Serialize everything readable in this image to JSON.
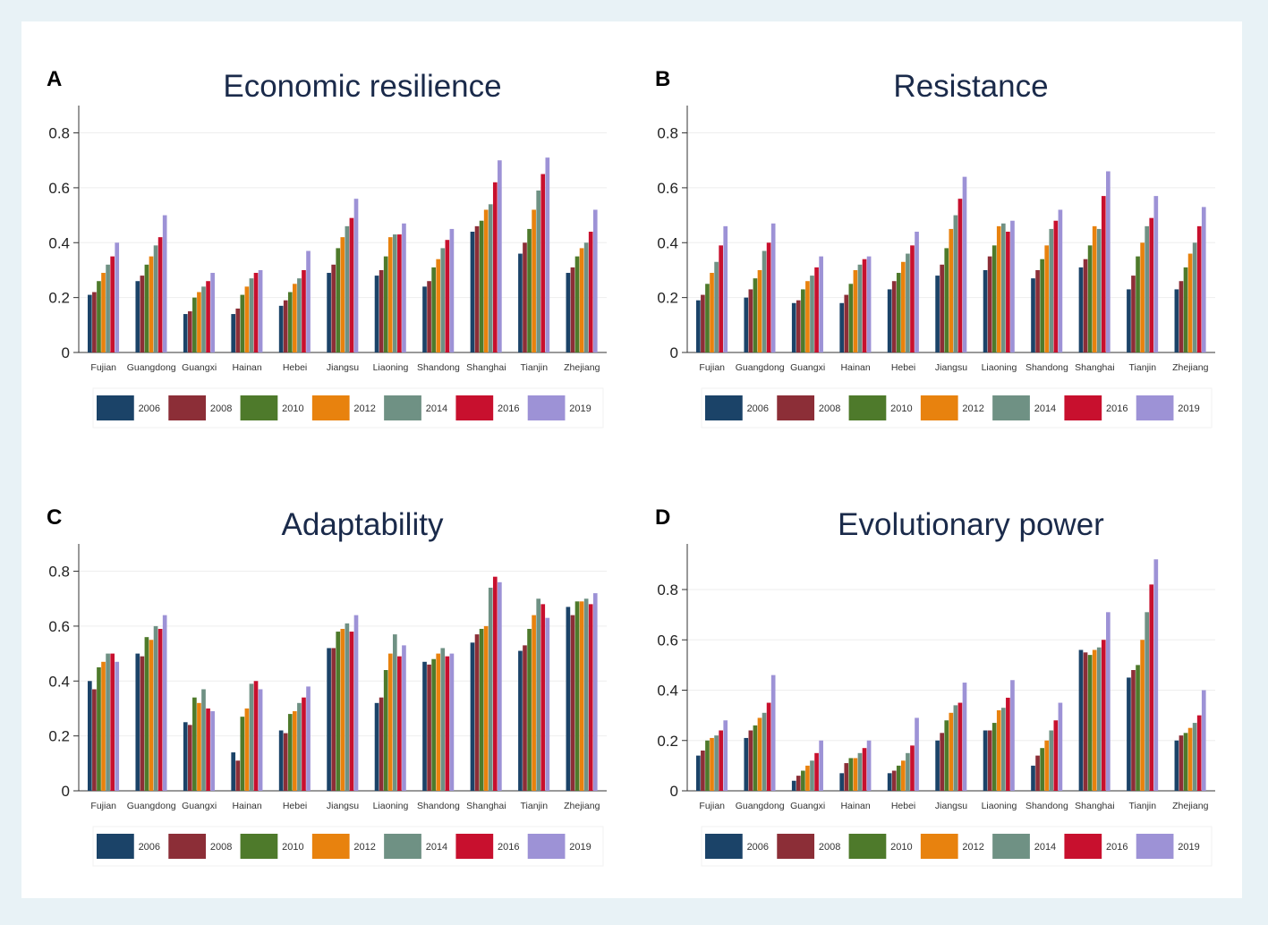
{
  "chart_data": [
    {
      "type": "bar",
      "panel_label": "A",
      "title": "Economic resilience",
      "xlabel": "",
      "ylabel": "",
      "ylim": [
        0,
        0.88
      ],
      "yticks": [
        0,
        0.2,
        0.4,
        0.6,
        0.8
      ],
      "ytick_labels": [
        "0",
        "0.2",
        "0.4",
        "0.6",
        "0.8"
      ],
      "grid": true,
      "legend_position": "bottom",
      "categories": [
        "Fujian",
        "Guangdong",
        "Guangxi",
        "Hainan",
        "Hebei",
        "Jiangsu",
        "Liaoning",
        "Shandong",
        "Shanghai",
        "Tianjin",
        "Zhejiang"
      ],
      "series": [
        {
          "name": "2006",
          "values": [
            0.21,
            0.26,
            0.14,
            0.14,
            0.17,
            0.29,
            0.28,
            0.24,
            0.44,
            0.36,
            0.29
          ]
        },
        {
          "name": "2008",
          "values": [
            0.22,
            0.28,
            0.15,
            0.16,
            0.19,
            0.32,
            0.3,
            0.26,
            0.46,
            0.4,
            0.31
          ]
        },
        {
          "name": "2010",
          "values": [
            0.26,
            0.32,
            0.2,
            0.21,
            0.22,
            0.38,
            0.35,
            0.31,
            0.48,
            0.45,
            0.35
          ]
        },
        {
          "name": "2012",
          "values": [
            0.29,
            0.35,
            0.22,
            0.24,
            0.25,
            0.42,
            0.42,
            0.34,
            0.52,
            0.52,
            0.38
          ]
        },
        {
          "name": "2014",
          "values": [
            0.32,
            0.39,
            0.24,
            0.27,
            0.27,
            0.46,
            0.43,
            0.38,
            0.54,
            0.59,
            0.4
          ]
        },
        {
          "name": "2016",
          "values": [
            0.35,
            0.42,
            0.26,
            0.29,
            0.3,
            0.49,
            0.43,
            0.41,
            0.62,
            0.65,
            0.44
          ]
        },
        {
          "name": "2019",
          "values": [
            0.4,
            0.5,
            0.29,
            0.3,
            0.37,
            0.56,
            0.47,
            0.45,
            0.7,
            0.71,
            0.52
          ]
        }
      ]
    },
    {
      "type": "bar",
      "panel_label": "B",
      "title": "Resistance",
      "xlabel": "",
      "ylabel": "",
      "ylim": [
        0,
        0.88
      ],
      "yticks": [
        0,
        0.2,
        0.4,
        0.6,
        0.8
      ],
      "ytick_labels": [
        "0",
        "0.2",
        "0.4",
        "0.6",
        "0.8"
      ],
      "grid": true,
      "legend_position": "bottom",
      "categories": [
        "Fujian",
        "Guangdong",
        "Guangxi",
        "Hainan",
        "Hebei",
        "Jiangsu",
        "Liaoning",
        "Shandong",
        "Shanghai",
        "Tianjin",
        "Zhejiang"
      ],
      "series": [
        {
          "name": "2006",
          "values": [
            0.19,
            0.2,
            0.18,
            0.18,
            0.23,
            0.28,
            0.3,
            0.27,
            0.31,
            0.23,
            0.23
          ]
        },
        {
          "name": "2008",
          "values": [
            0.21,
            0.23,
            0.19,
            0.21,
            0.26,
            0.32,
            0.35,
            0.3,
            0.34,
            0.28,
            0.26
          ]
        },
        {
          "name": "2010",
          "values": [
            0.25,
            0.27,
            0.23,
            0.25,
            0.29,
            0.38,
            0.39,
            0.34,
            0.39,
            0.35,
            0.31
          ]
        },
        {
          "name": "2012",
          "values": [
            0.29,
            0.3,
            0.26,
            0.3,
            0.33,
            0.45,
            0.46,
            0.39,
            0.46,
            0.4,
            0.36
          ]
        },
        {
          "name": "2014",
          "values": [
            0.33,
            0.37,
            0.28,
            0.32,
            0.36,
            0.5,
            0.47,
            0.45,
            0.45,
            0.46,
            0.4
          ]
        },
        {
          "name": "2016",
          "values": [
            0.39,
            0.4,
            0.31,
            0.34,
            0.39,
            0.56,
            0.44,
            0.48,
            0.57,
            0.49,
            0.46
          ]
        },
        {
          "name": "2019",
          "values": [
            0.46,
            0.47,
            0.35,
            0.35,
            0.44,
            0.64,
            0.48,
            0.52,
            0.66,
            0.57,
            0.53
          ]
        }
      ]
    },
    {
      "type": "bar",
      "panel_label": "C",
      "title": "Adaptability",
      "xlabel": "",
      "ylabel": "",
      "ylim": [
        0,
        0.88
      ],
      "yticks": [
        0,
        0.2,
        0.4,
        0.6,
        0.8
      ],
      "ytick_labels": [
        "0",
        "0.2",
        "0.4",
        "0.6",
        "0.8"
      ],
      "grid": true,
      "legend_position": "bottom",
      "categories": [
        "Fujian",
        "Guangdong",
        "Guangxi",
        "Hainan",
        "Hebei",
        "Jiangsu",
        "Liaoning",
        "Shandong",
        "Shanghai",
        "Tianjin",
        "Zhejiang"
      ],
      "series": [
        {
          "name": "2006",
          "values": [
            0.4,
            0.5,
            0.25,
            0.14,
            0.22,
            0.52,
            0.32,
            0.47,
            0.54,
            0.51,
            0.67
          ]
        },
        {
          "name": "2008",
          "values": [
            0.37,
            0.49,
            0.24,
            0.11,
            0.21,
            0.52,
            0.34,
            0.46,
            0.57,
            0.53,
            0.64
          ]
        },
        {
          "name": "2010",
          "values": [
            0.45,
            0.56,
            0.34,
            0.27,
            0.28,
            0.58,
            0.44,
            0.48,
            0.59,
            0.59,
            0.69
          ]
        },
        {
          "name": "2012",
          "values": [
            0.47,
            0.55,
            0.32,
            0.3,
            0.29,
            0.59,
            0.5,
            0.5,
            0.6,
            0.64,
            0.69
          ]
        },
        {
          "name": "2014",
          "values": [
            0.5,
            0.6,
            0.37,
            0.39,
            0.32,
            0.61,
            0.57,
            0.52,
            0.74,
            0.7,
            0.7
          ]
        },
        {
          "name": "2016",
          "values": [
            0.5,
            0.59,
            0.3,
            0.4,
            0.34,
            0.58,
            0.49,
            0.49,
            0.78,
            0.68,
            0.68
          ]
        },
        {
          "name": "2019",
          "values": [
            0.47,
            0.64,
            0.29,
            0.37,
            0.38,
            0.64,
            0.53,
            0.5,
            0.76,
            0.63,
            0.72
          ]
        }
      ]
    },
    {
      "type": "bar",
      "panel_label": "D",
      "title": "Evolutionary power",
      "xlabel": "",
      "ylabel": "",
      "ylim": [
        0,
        0.96
      ],
      "yticks": [
        0,
        0.2,
        0.4,
        0.6,
        0.8
      ],
      "ytick_labels": [
        "0",
        "0.2",
        "0.4",
        "0.6",
        "0.8"
      ],
      "grid": true,
      "legend_position": "bottom",
      "categories": [
        "Fujian",
        "Guangdong",
        "Guangxi",
        "Hainan",
        "Hebei",
        "Jiangsu",
        "Liaoning",
        "Shandong",
        "Shanghai",
        "Tianjin",
        "Zhejiang"
      ],
      "series": [
        {
          "name": "2006",
          "values": [
            0.14,
            0.21,
            0.04,
            0.07,
            0.07,
            0.2,
            0.24,
            0.1,
            0.56,
            0.45,
            0.2
          ]
        },
        {
          "name": "2008",
          "values": [
            0.16,
            0.24,
            0.06,
            0.11,
            0.08,
            0.23,
            0.24,
            0.14,
            0.55,
            0.48,
            0.22
          ]
        },
        {
          "name": "2010",
          "values": [
            0.2,
            0.26,
            0.08,
            0.13,
            0.1,
            0.28,
            0.27,
            0.17,
            0.54,
            0.5,
            0.23
          ]
        },
        {
          "name": "2012",
          "values": [
            0.21,
            0.29,
            0.1,
            0.13,
            0.12,
            0.31,
            0.32,
            0.2,
            0.56,
            0.6,
            0.25
          ]
        },
        {
          "name": "2014",
          "values": [
            0.22,
            0.31,
            0.12,
            0.15,
            0.15,
            0.34,
            0.33,
            0.24,
            0.57,
            0.71,
            0.27
          ]
        },
        {
          "name": "2016",
          "values": [
            0.24,
            0.35,
            0.15,
            0.17,
            0.18,
            0.35,
            0.37,
            0.28,
            0.6,
            0.82,
            0.3
          ]
        },
        {
          "name": "2019",
          "values": [
            0.28,
            0.46,
            0.2,
            0.2,
            0.29,
            0.43,
            0.44,
            0.35,
            0.71,
            0.92,
            0.4
          ]
        }
      ]
    }
  ],
  "colors": {
    "2006": "#1b4368",
    "2008": "#8c2e37",
    "2010": "#4e7a2b",
    "2012": "#e8820e",
    "2014": "#6f9184",
    "2016": "#c8102e",
    "2019": "#9d92d6"
  }
}
